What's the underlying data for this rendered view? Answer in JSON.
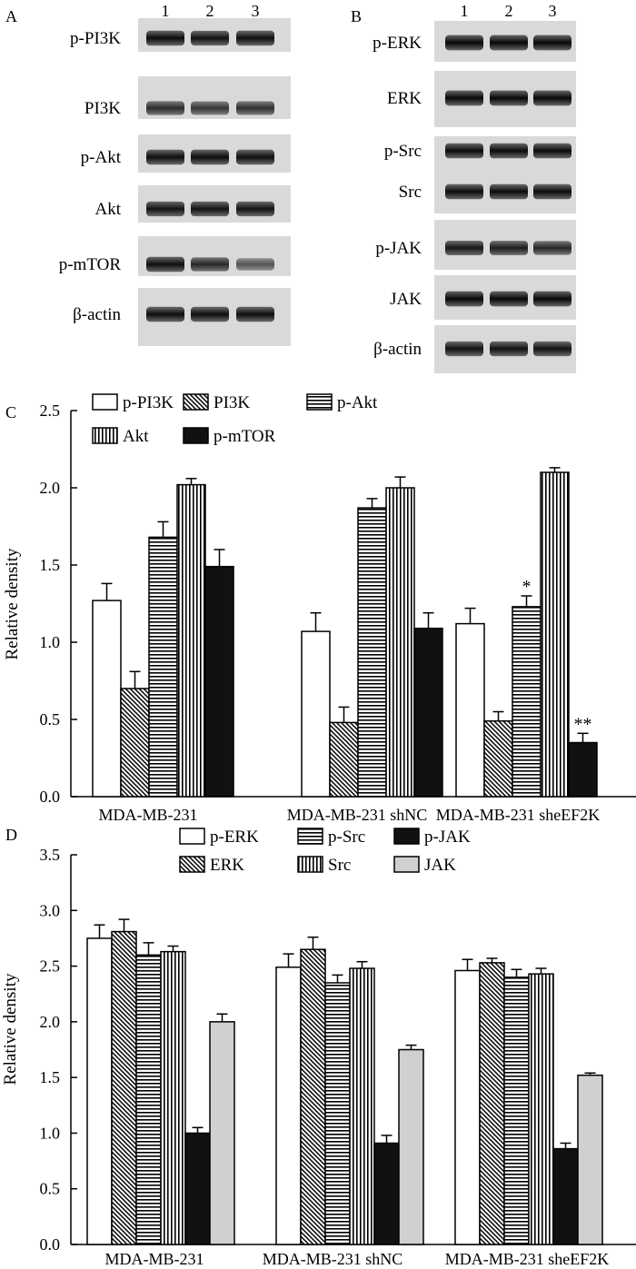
{
  "blots": {
    "A": {
      "panel_label": "A",
      "lanes": [
        "1",
        "2",
        "3"
      ],
      "rows": [
        {
          "label": "p-PI3K",
          "band_intensity": [
            0.92,
            0.88,
            0.9
          ]
        },
        {
          "label": "PI3K",
          "band_intensity": [
            0.7,
            0.62,
            0.66
          ]
        },
        {
          "label": "p-Akt",
          "band_intensity": [
            0.9,
            0.92,
            0.9
          ]
        },
        {
          "label": "Akt",
          "band_intensity": [
            0.88,
            0.88,
            0.88
          ]
        },
        {
          "label": "p-mTOR",
          "band_intensity": [
            0.9,
            0.72,
            0.4
          ]
        },
        {
          "label": "β-actin",
          "band_intensity": [
            0.9,
            0.9,
            0.9
          ]
        }
      ]
    },
    "B": {
      "panel_label": "B",
      "lanes": [
        "1",
        "2",
        "3"
      ],
      "rows": [
        {
          "label": "p-ERK",
          "band_intensity": [
            0.95,
            0.95,
            0.95
          ]
        },
        {
          "label": "ERK",
          "band_intensity": [
            0.95,
            0.95,
            0.95
          ]
        },
        {
          "label": "p-Src",
          "band_intensity": [
            0.92,
            0.92,
            0.92
          ]
        },
        {
          "label": "Src",
          "band_intensity": [
            0.92,
            0.92,
            0.92
          ]
        },
        {
          "label": "p-JAK",
          "band_intensity": [
            0.85,
            0.8,
            0.72
          ]
        },
        {
          "label": "JAK",
          "band_intensity": [
            0.95,
            0.95,
            0.95
          ]
        },
        {
          "label": "β-actin",
          "band_intensity": [
            0.88,
            0.88,
            0.88
          ]
        }
      ]
    }
  },
  "chart_data": [
    {
      "type": "bar",
      "panel_label": "C",
      "ylabel": "Relative density",
      "ylim": [
        0,
        2.5
      ],
      "yticks": [
        "0.0",
        "0.5",
        "1.0",
        "1.5",
        "2.0",
        "2.5"
      ],
      "categories": [
        "MDA-MB-231",
        "MDA-MB-231 shNC",
        "MDA-MB-231 sheEF2K"
      ],
      "legend_position": "top-left",
      "series": [
        {
          "name": "p-PI3K",
          "pattern": "white",
          "values": [
            1.27,
            1.07,
            1.12
          ],
          "errors": [
            0.11,
            0.12,
            0.1
          ],
          "sig": [
            "",
            "",
            ""
          ]
        },
        {
          "name": "PI3K",
          "pattern": "diag",
          "values": [
            0.7,
            0.48,
            0.49
          ],
          "errors": [
            0.11,
            0.1,
            0.06
          ],
          "sig": [
            "",
            "",
            ""
          ]
        },
        {
          "name": "p-Akt",
          "pattern": "hlines",
          "values": [
            1.68,
            1.87,
            1.23
          ],
          "errors": [
            0.1,
            0.06,
            0.07
          ],
          "sig": [
            "",
            "",
            "*"
          ]
        },
        {
          "name": "Akt",
          "pattern": "vlines",
          "values": [
            2.02,
            2.0,
            2.1
          ],
          "errors": [
            0.04,
            0.07,
            0.03
          ],
          "sig": [
            "",
            "",
            ""
          ]
        },
        {
          "name": "p-mTOR",
          "pattern": "black",
          "values": [
            1.49,
            1.09,
            0.35
          ],
          "errors": [
            0.11,
            0.1,
            0.06
          ],
          "sig": [
            "",
            "",
            "**"
          ]
        }
      ]
    },
    {
      "type": "bar",
      "panel_label": "D",
      "ylabel": "Relative density",
      "ylim": [
        0,
        3.5
      ],
      "yticks": [
        "0.0",
        "0.5",
        "1.0",
        "1.5",
        "2.0",
        "2.5",
        "3.0",
        "3.5"
      ],
      "categories": [
        "MDA-MB-231",
        "MDA-MB-231 shNC",
        "MDA-MB-231 sheEF2K"
      ],
      "legend_position": "top-center",
      "series": [
        {
          "name": "p-ERK",
          "pattern": "white",
          "values": [
            2.75,
            2.49,
            2.46
          ],
          "errors": [
            0.12,
            0.12,
            0.1
          ],
          "sig": [
            "",
            "",
            ""
          ]
        },
        {
          "name": "ERK",
          "pattern": "diag",
          "values": [
            2.81,
            2.65,
            2.53
          ],
          "errors": [
            0.11,
            0.11,
            0.04
          ],
          "sig": [
            "",
            "",
            ""
          ]
        },
        {
          "name": "p-Src",
          "pattern": "hlines",
          "values": [
            2.6,
            2.35,
            2.4
          ],
          "errors": [
            0.11,
            0.07,
            0.07
          ],
          "sig": [
            "",
            "",
            ""
          ]
        },
        {
          "name": "Src",
          "pattern": "vlines",
          "values": [
            2.63,
            2.48,
            2.43
          ],
          "errors": [
            0.05,
            0.06,
            0.05
          ],
          "sig": [
            "",
            "",
            ""
          ]
        },
        {
          "name": "p-JAK",
          "pattern": "black",
          "values": [
            1.0,
            0.91,
            0.86
          ],
          "errors": [
            0.05,
            0.07,
            0.05
          ],
          "sig": [
            "",
            "",
            ""
          ]
        },
        {
          "name": "JAK",
          "pattern": "gray",
          "values": [
            2.0,
            1.75,
            1.52
          ],
          "errors": [
            0.07,
            0.04,
            0.02
          ],
          "sig": [
            "",
            "",
            ""
          ]
        }
      ]
    }
  ]
}
